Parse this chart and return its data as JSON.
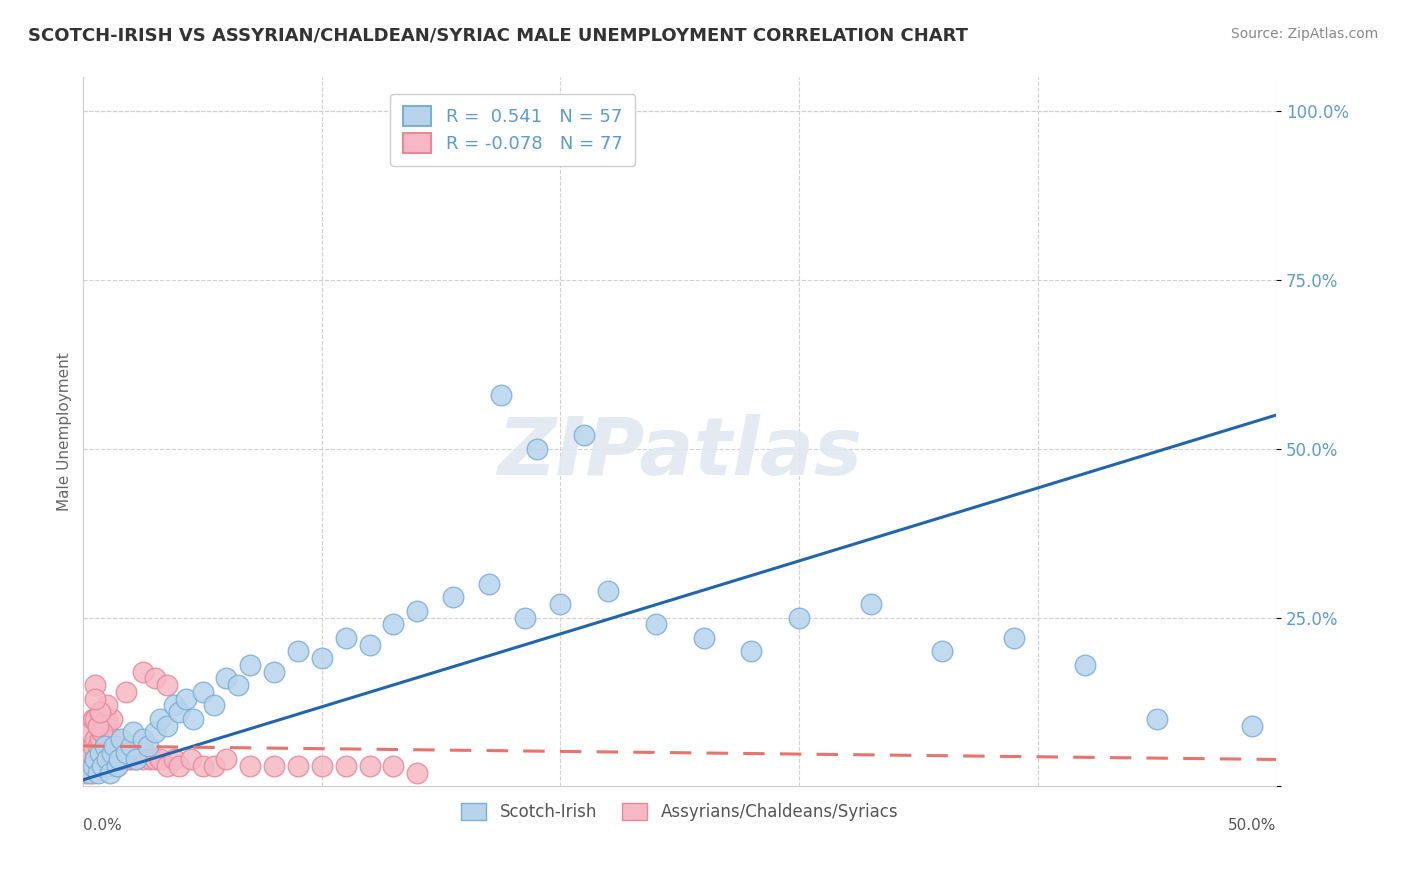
{
  "title": "SCOTCH-IRISH VS ASSYRIAN/CHALDEAN/SYRIAC MALE UNEMPLOYMENT CORRELATION CHART",
  "source": "Source: ZipAtlas.com",
  "ylabel": "Male Unemployment",
  "xlim": [
    0.0,
    0.5
  ],
  "ylim": [
    0.0,
    1.05
  ],
  "blue_face": "#b8d4ed",
  "blue_edge": "#7aafd4",
  "pink_face": "#f5b8c4",
  "pink_edge": "#e88898",
  "blue_line": "#2166ac",
  "pink_line": "#e8736c",
  "watermark": "ZIPatlas",
  "background_color": "#ffffff",
  "grid_color": "#d8d8d8"
}
